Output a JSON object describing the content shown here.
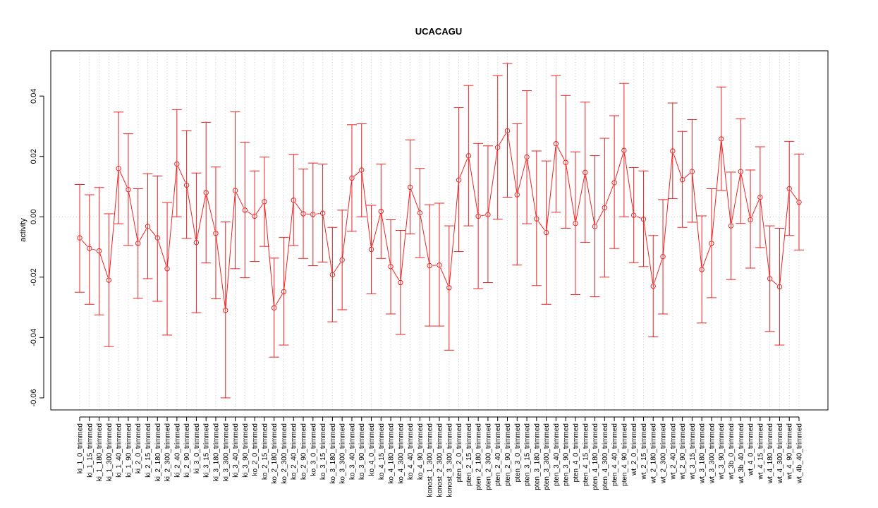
{
  "chart_data": {
    "type": "line",
    "title": "UCACAGU",
    "xlabel": "",
    "ylabel": "activity",
    "ylim": [
      -0.064,
      0.055
    ],
    "yticks": [
      -0.06,
      -0.04,
      -0.02,
      0.0,
      0.02,
      0.04
    ],
    "ytick_labels": [
      "-0.06",
      "-0.04",
      "-0.02",
      "0.00",
      "0.02",
      "0.04"
    ],
    "grid": "vertical dotted",
    "reference_line": 0,
    "color": "#ee2222",
    "categories": [
      "ki_1_0_trimmed",
      "ki_1_15_trimmed",
      "ki_1_180_trimmed",
      "ki_1_300_trimmed",
      "ki_1_40_trimmed",
      "ki_1_90_trimmed",
      "ki_2_0_trimmed",
      "ki_2_15_trimmed",
      "ki_2_180_trimmed",
      "ki_2_300_trimmed",
      "ki_2_40_trimmed",
      "ki_2_90_trimmed",
      "ki_3_0_trimmed",
      "ki_3_15_trimmed",
      "ki_3_180_trimmed",
      "ki_3_300_trimmed",
      "ki_3_40_trimmed",
      "ki_3_90_trimmed",
      "ko_2_0_trimmed",
      "ko_2_15_trimmed",
      "ko_2_180_trimmed",
      "ko_2_300_trimmed",
      "ko_2_40_trimmed",
      "ko_2_90_trimmed",
      "ko_3_0_trimmed",
      "ko_3_15_trimmed",
      "ko_3_180_trimmed",
      "ko_3_300_trimmed",
      "ko_3_40_trimmed",
      "ko_3_90_trimmed",
      "ko_4_0_trimmed",
      "ko_4_15_trimmed",
      "ko_4_180_trimmed",
      "ko_4_300_trimmed",
      "ko_4_40_trimmed",
      "ko_4_90_trimmed",
      "konost_1_300_trimmed",
      "konost_2_300_trimmed",
      "konost_3_300_trimmed",
      "pten_2_0_trimmed",
      "pten_2_15_trimmed",
      "pten_2_180_trimmed",
      "pten_2_300_trimmed",
      "pten_2_40_trimmed",
      "pten_2_90_trimmed",
      "pten_3_0_trimmed",
      "pten_3_15_trimmed",
      "pten_3_180_trimmed",
      "pten_3_300_trimmed",
      "pten_3_40_trimmed",
      "pten_3_90_trimmed",
      "pten_4_0_trimmed",
      "pten_4_15_trimmed",
      "pten_4_180_trimmed",
      "pten_4_300_trimmed",
      "pten_4_40_trimmed",
      "pten_4_90_trimmed",
      "wt_2_0_trimmed",
      "wt_2_15_trimmed",
      "wt_2_180_trimmed",
      "wt_2_300_trimmed",
      "wt_2_40_trimmed",
      "wt_2_90_trimmed",
      "wt_3_15_trimmed",
      "wt_3_180_trimmed",
      "wt_3_300_trimmed",
      "wt_3_90_trimmed",
      "wt_3b_0_trimmed",
      "wt_3b_40_trimmed",
      "wt_4_0_trimmed",
      "wt_4_15_trimmed",
      "wt_4_180_trimmed",
      "wt_4_300_trimmed",
      "wt_4_90_trimmed",
      "wt_4b_40_trimmed"
    ],
    "values": [
      -0.007,
      -0.0105,
      -0.0113,
      -0.021,
      0.016,
      0.009,
      -0.0088,
      -0.0032,
      -0.007,
      -0.0172,
      0.0175,
      0.0105,
      -0.0085,
      0.008,
      -0.0055,
      -0.031,
      0.0087,
      0.0022,
      0.0002,
      0.005,
      -0.0302,
      -0.0248,
      0.0055,
      0.001,
      0.0008,
      0.0012,
      -0.0192,
      -0.0143,
      0.0128,
      0.0155,
      -0.0108,
      0.0018,
      -0.0165,
      -0.0218,
      0.0098,
      0.0013,
      -0.0162,
      -0.016,
      -0.0235,
      0.0122,
      0.0202,
      0.0002,
      0.0007,
      0.023,
      0.0285,
      0.0073,
      0.0198,
      -0.0007,
      -0.0052,
      0.0242,
      0.018,
      -0.0022,
      0.0147,
      -0.0032,
      0.003,
      0.0113,
      0.022,
      0.0005,
      -0.0008,
      -0.023,
      -0.0132,
      0.0218,
      0.0123,
      0.015,
      -0.0175,
      -0.0088,
      0.0258,
      -0.003,
      0.015,
      -0.001,
      0.0065,
      -0.0205,
      -0.0232,
      0.0093,
      0.0048
    ],
    "lower": [
      -0.025,
      -0.029,
      -0.0325,
      -0.043,
      -0.0023,
      -0.0095,
      -0.027,
      -0.0205,
      -0.028,
      -0.0392,
      0.0,
      -0.0072,
      -0.0318,
      -0.0153,
      -0.0272,
      -0.06,
      -0.0172,
      -0.0202,
      -0.0148,
      -0.0098,
      -0.0465,
      -0.0425,
      -0.0095,
      -0.0138,
      -0.0162,
      -0.015,
      -0.0348,
      -0.0308,
      -0.0048,
      0.0,
      -0.0255,
      -0.0138,
      -0.0322,
      -0.039,
      -0.0057,
      -0.0135,
      -0.0362,
      -0.0362,
      -0.0442,
      -0.0115,
      -0.003,
      -0.0238,
      -0.0218,
      -0.0008,
      0.0065,
      -0.016,
      -0.0023,
      -0.0228,
      -0.029,
      0.0015,
      -0.0038,
      -0.0258,
      -0.0085,
      -0.0265,
      -0.02,
      -0.0105,
      0.0,
      -0.0152,
      -0.0165,
      -0.0398,
      -0.0322,
      0.006,
      -0.0035,
      -0.0018,
      -0.0352,
      -0.0268,
      0.0087,
      -0.0208,
      -0.0022,
      -0.017,
      -0.0102,
      -0.038,
      -0.0425,
      -0.0062,
      -0.011
    ],
    "upper": [
      0.0107,
      0.0073,
      0.0097,
      0.001,
      0.0347,
      0.0275,
      0.0093,
      0.0143,
      0.0135,
      0.0047,
      0.0355,
      0.0285,
      0.0145,
      0.0313,
      0.0165,
      -0.0017,
      0.0348,
      0.0247,
      0.0152,
      0.0198,
      -0.0137,
      -0.0068,
      0.0207,
      0.0158,
      0.0178,
      0.0175,
      -0.0035,
      0.0022,
      0.0305,
      0.0308,
      0.0038,
      0.0175,
      -0.001,
      -0.0045,
      0.0255,
      0.016,
      0.004,
      0.0045,
      -0.003,
      0.0362,
      0.0435,
      0.0243,
      0.0235,
      0.0468,
      0.0508,
      0.0308,
      0.0418,
      0.0218,
      0.0185,
      0.0468,
      0.0402,
      0.0215,
      0.038,
      0.0203,
      0.026,
      0.0335,
      0.0442,
      0.0163,
      0.0152,
      -0.0062,
      0.0057,
      0.0377,
      0.0283,
      0.0322,
      0.0003,
      0.0093,
      0.043,
      0.0148,
      0.0325,
      0.0155,
      0.0232,
      -0.003,
      -0.0038,
      0.025,
      0.0208
    ]
  }
}
